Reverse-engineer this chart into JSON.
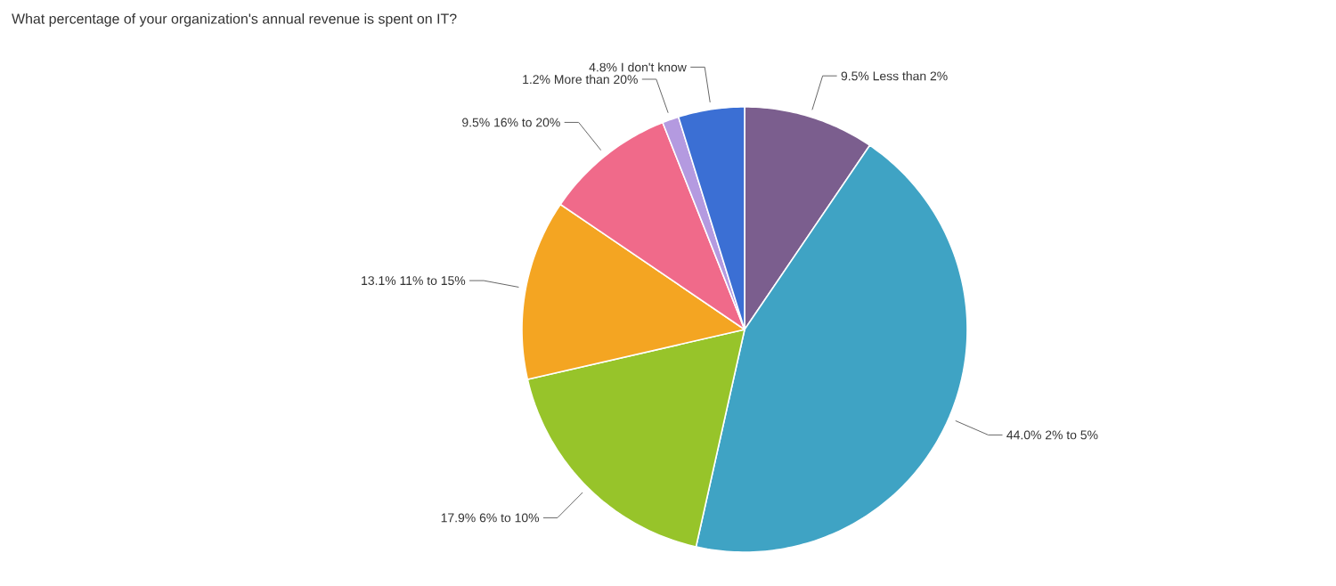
{
  "chart_data": {
    "type": "pie",
    "title": "What percentage of your organization's annual revenue is spent on IT?",
    "categories": [
      "Less than 2%",
      "2% to 5%",
      "6% to 10%",
      "11% to 15%",
      "16% to 20%",
      "More than 20%",
      "I don't know"
    ],
    "values": [
      9.5,
      44.0,
      17.9,
      13.1,
      9.5,
      1.2,
      4.8
    ],
    "value_labels": [
      "9.5%",
      "44.0%",
      "17.9%",
      "13.1%",
      "9.5%",
      "1.2%",
      "4.8%"
    ],
    "colors": [
      "#7b5e8e",
      "#3fa3c4",
      "#97c42a",
      "#f4a522",
      "#f06a8a",
      "#b49ae0",
      "#3b6fd4"
    ]
  }
}
